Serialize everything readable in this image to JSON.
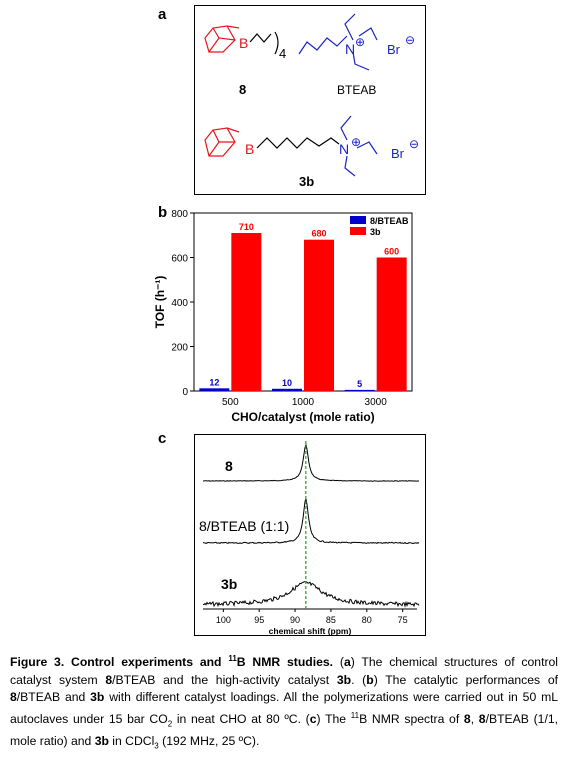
{
  "panels": {
    "a": {
      "letter": "a",
      "structures": {
        "cmpd8_subscript": "4",
        "cmpd8_label": "8",
        "bteab_label": "BTEAB",
        "cmpd3b_label": "3b",
        "boron": "B",
        "nitrogen": "N",
        "counter_ion": "Br",
        "cation_charge": "⊕",
        "anion_charge": "⊖"
      }
    },
    "b": {
      "letter": "b"
    },
    "c": {
      "letter": "c",
      "trace_labels": [
        "8",
        "8/BTEAB (1:1)",
        "3b"
      ],
      "x_ticks": [
        "100",
        "95",
        "90",
        "85",
        "80",
        "75"
      ],
      "xlabel": "chemical shift (ppm)"
    }
  },
  "chart_data": {
    "type": "bar",
    "categories": [
      "500",
      "1000",
      "3000"
    ],
    "series": [
      {
        "name": "8/BTEAB",
        "values": [
          12,
          10,
          5
        ],
        "labels": [
          "12",
          "10",
          "5"
        ]
      },
      {
        "name": "3b",
        "values": [
          710,
          680,
          600
        ],
        "labels": [
          "710",
          "680",
          "600"
        ]
      }
    ],
    "xlabel": "CHO/catalyst (mole ratio)",
    "ylabel": "TOF (h⁻¹)",
    "ylim": [
      0,
      800
    ],
    "yticks": [
      "0",
      "200",
      "400",
      "600",
      "800"
    ],
    "legend": "top-right",
    "colors": {
      "8/BTEAB": "#0000cc",
      "3b": "#ff0000"
    }
  },
  "caption": {
    "fig_label": "Figure 3. Control experiments and ",
    "sup11": "11",
    "title_rest": "B NMR studies.",
    "t1": " (",
    "a": "a",
    "t2": ") The chemical structures of control catalyst system ",
    "b8a": "8",
    "t3": "/BTEAB and the high-activity catalyst ",
    "b3ba": "3b",
    "t4": ". (",
    "b": "b",
    "t5": ") The catalytic performances of ",
    "b8b": "8",
    "t6": "/BTEAB and ",
    "b3bb": "3b",
    "t7": " with different catalyst loadings. All the polymerizations were carried out in 50 mL autoclaves under 15 bar CO",
    "sub2": "2",
    "t8": " in neat CHO at 80 ºC. (",
    "c": "c",
    "t9": ") The ",
    "sup11b": "11",
    "t10": "B NMR spectra of ",
    "b8c": "8",
    "t11": ", ",
    "b8d": "8",
    "t12": "/BTEAB (1/1, mole ratio) and ",
    "b3bc": "3b",
    "t13": " in CDCl",
    "sub3": "3",
    "t14": " (192 MHz, 25 ºC)."
  }
}
